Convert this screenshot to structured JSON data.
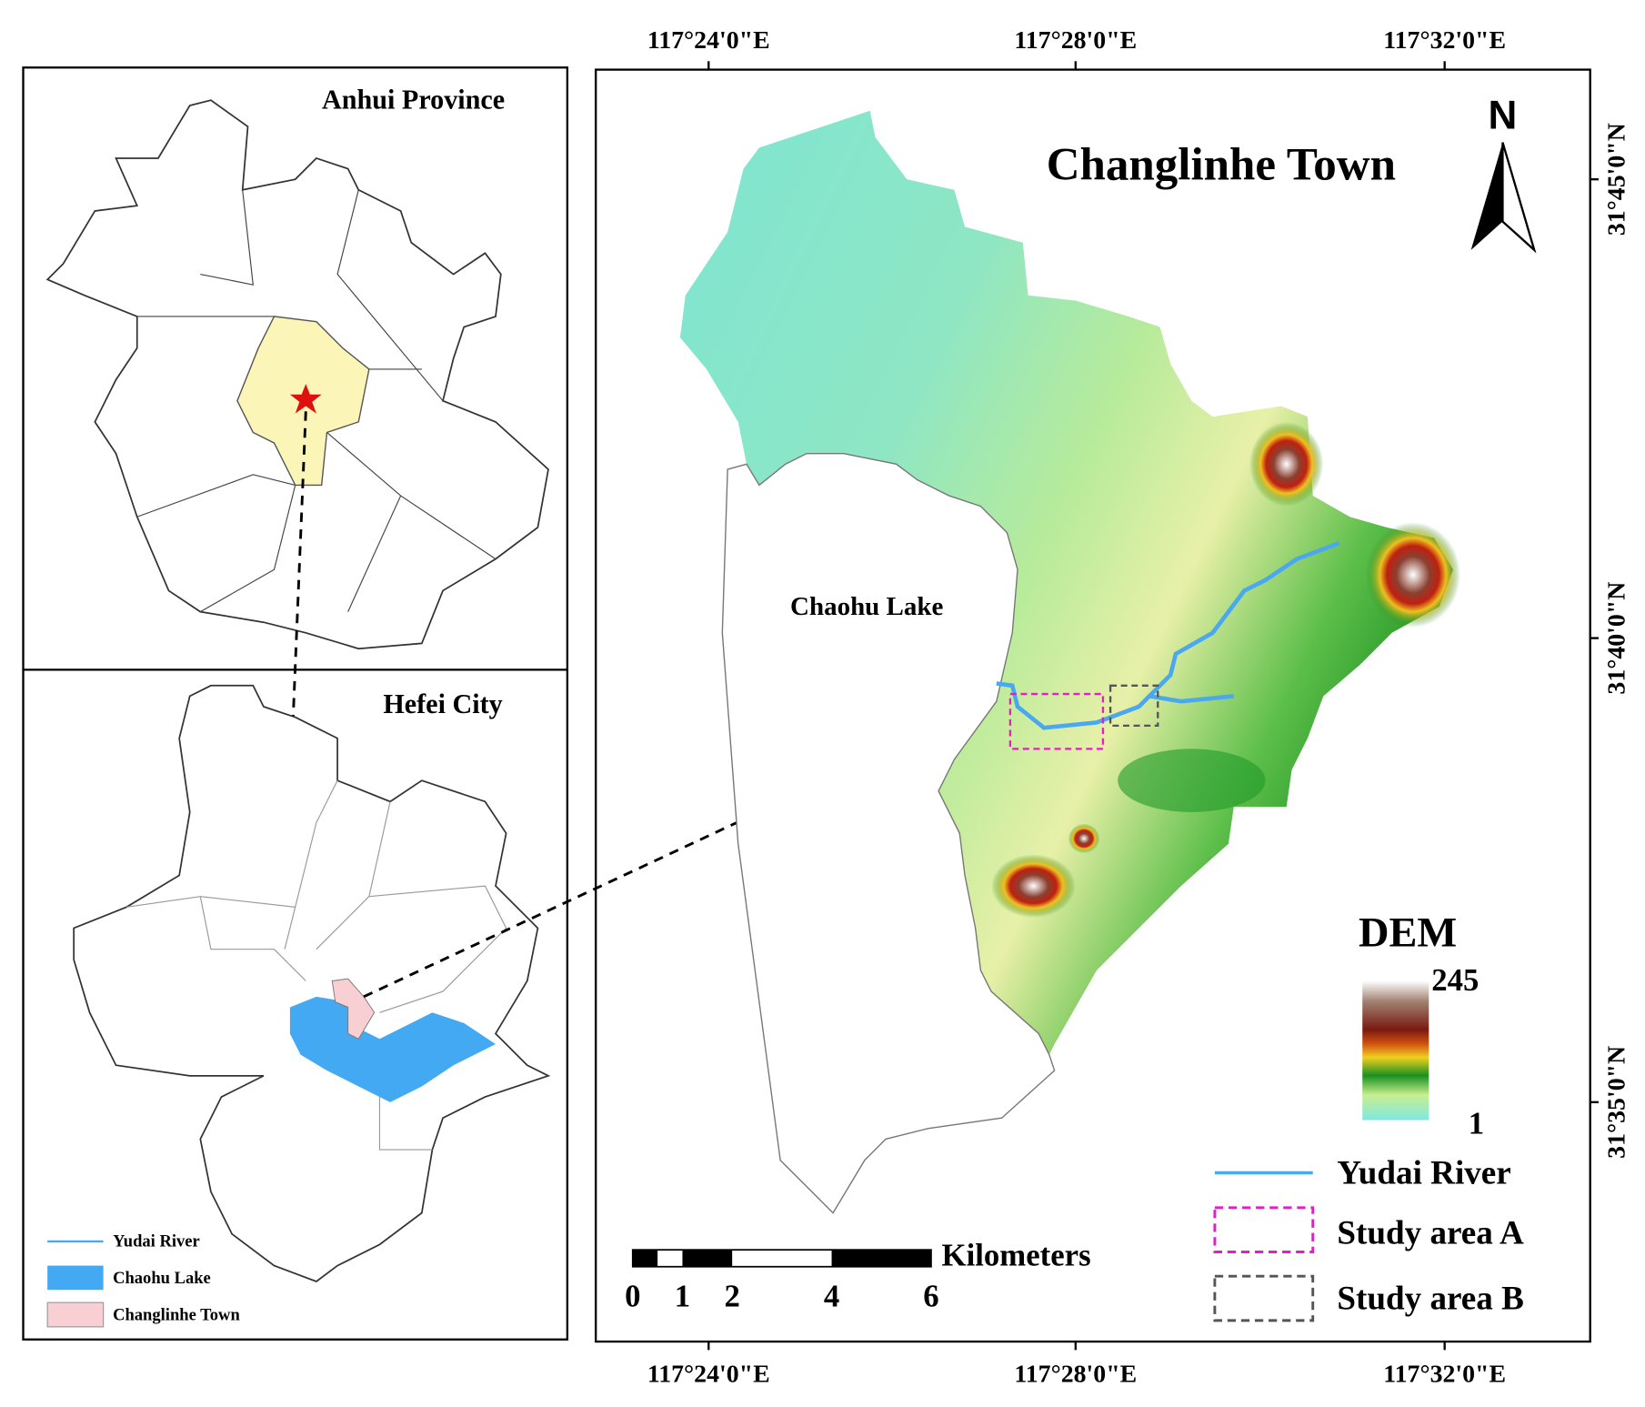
{
  "inset_top": {
    "title": "Anhui Province"
  },
  "inset_bottom": {
    "title": "Hefei City",
    "legend": [
      "Yudai River",
      "Chaohu Lake",
      "Changlinhe Town"
    ]
  },
  "main": {
    "title": "Changlinhe Town",
    "lake_label": "Chaohu Lake",
    "north": "N",
    "x_labels_top": [
      "117°24'0\"E",
      "117°28'0\"E",
      "117°32'0\"E"
    ],
    "x_labels_bottom": [
      "117°24'0\"E",
      "117°28'0\"E",
      "117°32'0\"E"
    ],
    "y_labels": [
      "31°45'0\"N",
      "31°40'0\"N",
      "31°35'0\"N"
    ],
    "dem": {
      "title": "DEM",
      "max": 245,
      "min": 1
    },
    "legend": [
      "Yudai River",
      "Study area A",
      "Study area B"
    ],
    "scale": {
      "unit": "Kilometers",
      "ticks": [
        0,
        1,
        2,
        4,
        6
      ]
    }
  }
}
